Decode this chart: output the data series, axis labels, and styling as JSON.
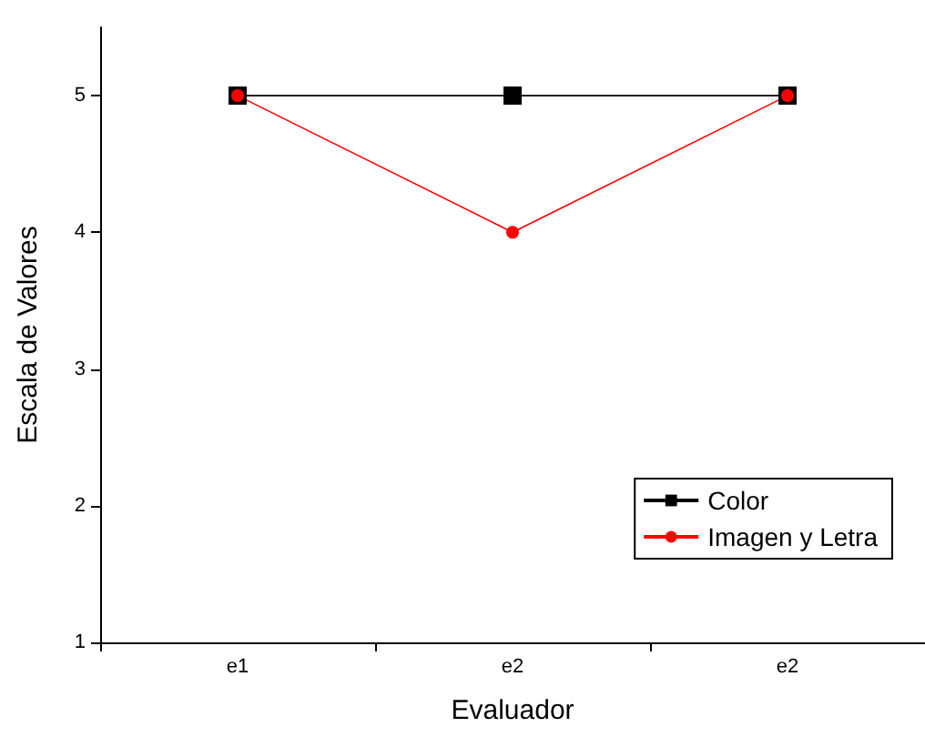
{
  "chart_data": {
    "type": "line",
    "xlabel": "Evaluador",
    "ylabel": "Escala de Valores",
    "categories": [
      "e1",
      "e2",
      "e2"
    ],
    "ylim": [
      1,
      5.5
    ],
    "yticks": [
      1,
      2,
      3,
      4,
      5
    ],
    "grid": false,
    "legend": "bottom right",
    "line_style": "solid",
    "series": [
      {
        "name": "Color",
        "color": "#000000",
        "marker": "square",
        "values": [
          5,
          5,
          5
        ]
      },
      {
        "name": "Imagen y Letra",
        "color": "#ff0000",
        "marker": "circle",
        "values": [
          5,
          4,
          5
        ]
      }
    ]
  }
}
